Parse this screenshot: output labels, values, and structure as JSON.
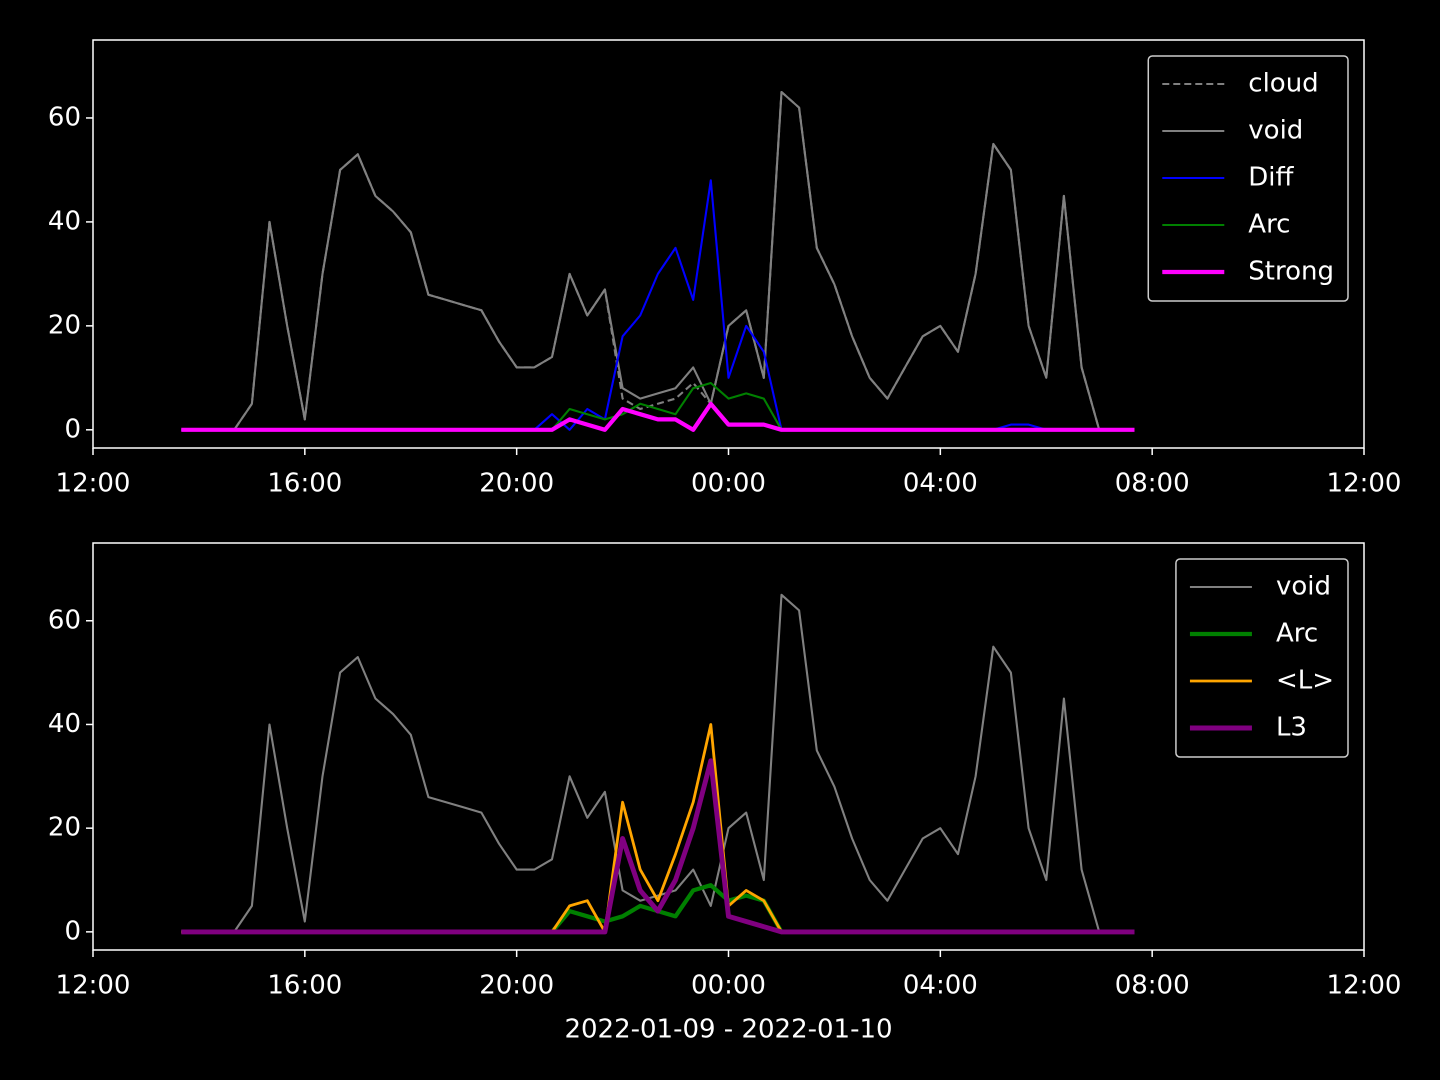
{
  "chart_data": [
    {
      "type": "line",
      "x": [
        "13:40",
        "14:00",
        "14:20",
        "14:40",
        "15:00",
        "15:20",
        "15:40",
        "16:00",
        "16:20",
        "16:40",
        "17:00",
        "17:20",
        "17:40",
        "18:00",
        "18:20",
        "18:40",
        "19:00",
        "19:20",
        "19:40",
        "20:00",
        "20:20",
        "20:40",
        "21:00",
        "21:20",
        "21:40",
        "22:00",
        "22:20",
        "22:40",
        "23:00",
        "23:20",
        "23:40",
        "00:00",
        "00:20",
        "00:40",
        "01:00",
        "01:20",
        "01:40",
        "02:00",
        "02:20",
        "02:40",
        "03:00",
        "03:20",
        "03:40",
        "04:00",
        "04:20",
        "04:40",
        "05:00",
        "05:20",
        "05:40",
        "06:00",
        "06:20",
        "06:40",
        "07:00",
        "07:20",
        "07:40"
      ],
      "xlim": [
        "12:00",
        "12:00"
      ],
      "xticks": [
        "12:00",
        "16:00",
        "20:00",
        "00:00",
        "04:00",
        "08:00",
        "12:00"
      ],
      "ylim": [
        -3.5,
        75
      ],
      "yticks": [
        0,
        20,
        40,
        60
      ],
      "legend": "upper right",
      "series": [
        {
          "name": "cloud",
          "color": "#808080",
          "linewidth": 1.5,
          "linestyle": "dashed",
          "values": [
            0,
            0,
            0,
            0,
            5,
            40,
            20,
            2,
            30,
            50,
            53,
            45,
            42,
            38,
            26,
            25,
            24,
            23,
            17,
            12,
            12,
            14,
            30,
            22,
            27,
            6,
            4,
            5,
            6,
            9,
            5,
            20,
            23,
            10,
            65,
            62,
            35,
            28,
            18,
            10,
            6,
            12,
            18,
            20,
            15,
            30,
            55,
            50,
            20,
            10,
            45,
            12,
            0,
            0,
            0
          ]
        },
        {
          "name": "void",
          "color": "#808080",
          "linewidth": 1.5,
          "linestyle": "solid",
          "values": [
            0,
            0,
            0,
            0,
            5,
            40,
            20,
            2,
            30,
            50,
            53,
            45,
            42,
            38,
            26,
            25,
            24,
            23,
            17,
            12,
            12,
            14,
            30,
            22,
            27,
            8,
            6,
            7,
            8,
            12,
            5,
            20,
            23,
            10,
            65,
            62,
            35,
            28,
            18,
            10,
            6,
            12,
            18,
            20,
            15,
            30,
            55,
            50,
            20,
            10,
            45,
            12,
            0,
            0,
            0
          ]
        },
        {
          "name": "Diff",
          "color": "#0000ff",
          "linewidth": 1.5,
          "linestyle": "solid",
          "values": [
            0,
            0,
            0,
            0,
            0,
            0,
            0,
            0,
            0,
            0,
            0,
            0,
            0,
            0,
            0,
            0,
            0,
            0,
            0,
            0,
            0,
            3,
            0,
            4,
            2,
            18,
            22,
            30,
            35,
            25,
            48,
            10,
            20,
            15,
            0,
            0,
            0,
            0,
            0,
            0,
            0,
            0,
            0,
            0,
            0,
            0,
            0,
            1,
            1,
            0,
            0,
            0,
            0,
            0,
            0
          ]
        },
        {
          "name": "Arc",
          "color": "#008000",
          "linewidth": 1.5,
          "linestyle": "solid",
          "values": [
            0,
            0,
            0,
            0,
            0,
            0,
            0,
            0,
            0,
            0,
            0,
            0,
            0,
            0,
            0,
            0,
            0,
            0,
            0,
            0,
            0,
            0,
            4,
            3,
            2,
            3,
            5,
            4,
            3,
            8,
            9,
            6,
            7,
            6,
            0,
            0,
            0,
            0,
            0,
            0,
            0,
            0,
            0,
            0,
            0,
            0,
            0,
            0,
            0,
            0,
            0,
            0,
            0,
            0,
            0
          ]
        },
        {
          "name": "Strong",
          "color": "#ff00ff",
          "linewidth": 3,
          "linestyle": "solid",
          "values": [
            0,
            0,
            0,
            0,
            0,
            0,
            0,
            0,
            0,
            0,
            0,
            0,
            0,
            0,
            0,
            0,
            0,
            0,
            0,
            0,
            0,
            0,
            2,
            1,
            0,
            4,
            3,
            2,
            2,
            0,
            5,
            1,
            1,
            1,
            0,
            0,
            0,
            0,
            0,
            0,
            0,
            0,
            0,
            0,
            0,
            0,
            0,
            0,
            0,
            0,
            0,
            0,
            0,
            0,
            0
          ]
        }
      ]
    },
    {
      "type": "line",
      "xlabel": "2022-01-09 - 2022-01-10",
      "x": [
        "13:40",
        "14:00",
        "14:20",
        "14:40",
        "15:00",
        "15:20",
        "15:40",
        "16:00",
        "16:20",
        "16:40",
        "17:00",
        "17:20",
        "17:40",
        "18:00",
        "18:20",
        "18:40",
        "19:00",
        "19:20",
        "19:40",
        "20:00",
        "20:20",
        "20:40",
        "21:00",
        "21:20",
        "21:40",
        "22:00",
        "22:20",
        "22:40",
        "23:00",
        "23:20",
        "23:40",
        "00:00",
        "00:20",
        "00:40",
        "01:00",
        "01:20",
        "01:40",
        "02:00",
        "02:20",
        "02:40",
        "03:00",
        "03:20",
        "03:40",
        "04:00",
        "04:20",
        "04:40",
        "05:00",
        "05:20",
        "05:40",
        "06:00",
        "06:20",
        "06:40",
        "07:00",
        "07:20",
        "07:40"
      ],
      "xlim": [
        "12:00",
        "12:00"
      ],
      "xticks": [
        "12:00",
        "16:00",
        "20:00",
        "00:00",
        "04:00",
        "08:00",
        "12:00"
      ],
      "ylim": [
        -3.5,
        75
      ],
      "yticks": [
        0,
        20,
        40,
        60
      ],
      "legend": "upper right",
      "series": [
        {
          "name": "void",
          "color": "#808080",
          "linewidth": 1.5,
          "linestyle": "solid",
          "values": [
            0,
            0,
            0,
            0,
            5,
            40,
            20,
            2,
            30,
            50,
            53,
            45,
            42,
            38,
            26,
            25,
            24,
            23,
            17,
            12,
            12,
            14,
            30,
            22,
            27,
            8,
            6,
            7,
            8,
            12,
            5,
            20,
            23,
            10,
            65,
            62,
            35,
            28,
            18,
            10,
            6,
            12,
            18,
            20,
            15,
            30,
            55,
            50,
            20,
            10,
            45,
            12,
            0,
            0,
            0
          ]
        },
        {
          "name": "Arc",
          "color": "#008000",
          "linewidth": 3,
          "linestyle": "solid",
          "values": [
            0,
            0,
            0,
            0,
            0,
            0,
            0,
            0,
            0,
            0,
            0,
            0,
            0,
            0,
            0,
            0,
            0,
            0,
            0,
            0,
            0,
            0,
            4,
            3,
            2,
            3,
            5,
            4,
            3,
            8,
            9,
            6,
            7,
            6,
            0,
            0,
            0,
            0,
            0,
            0,
            0,
            0,
            0,
            0,
            0,
            0,
            0,
            0,
            0,
            0,
            0,
            0,
            0,
            0,
            0
          ]
        },
        {
          "name": "<L>",
          "color": "#ffa500",
          "linewidth": 2,
          "linestyle": "solid",
          "values": [
            0,
            0,
            0,
            0,
            0,
            0,
            0,
            0,
            0,
            0,
            0,
            0,
            0,
            0,
            0,
            0,
            0,
            0,
            0,
            0,
            0,
            0,
            5,
            6,
            0,
            25,
            12,
            6,
            15,
            25,
            40,
            5,
            8,
            6,
            0,
            0,
            0,
            0,
            0,
            0,
            0,
            0,
            0,
            0,
            0,
            0,
            0,
            0,
            0,
            0,
            0,
            0,
            0,
            0,
            0
          ]
        },
        {
          "name": "L3",
          "color": "#800080",
          "linewidth": 3.5,
          "linestyle": "solid",
          "values": [
            0,
            0,
            0,
            0,
            0,
            0,
            0,
            0,
            0,
            0,
            0,
            0,
            0,
            0,
            0,
            0,
            0,
            0,
            0,
            0,
            0,
            0,
            0,
            0,
            0,
            18,
            8,
            4,
            10,
            20,
            33,
            3,
            2,
            1,
            0,
            0,
            0,
            0,
            0,
            0,
            0,
            0,
            0,
            0,
            0,
            0,
            0,
            0,
            0,
            0,
            0,
            0,
            0,
            0,
            0
          ]
        }
      ]
    }
  ]
}
